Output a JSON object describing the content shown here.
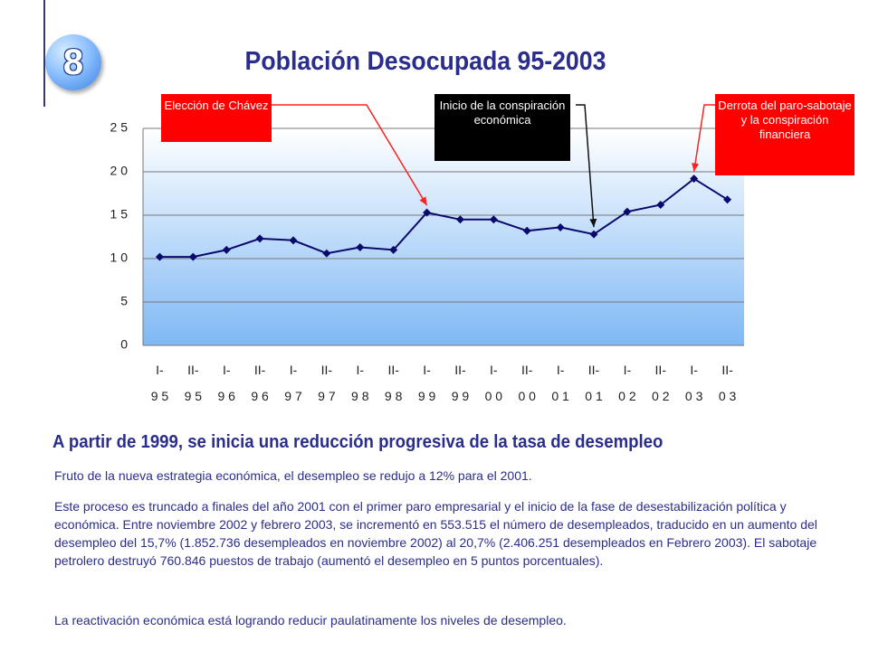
{
  "slide": {
    "number": "8",
    "title": "Población Desocupada 95-2003"
  },
  "callouts": {
    "eleccion": "Elección de Chávez",
    "inicio": "Inicio de la conspiración económica",
    "derrota": "Derrota del paro-sabotaje y la conspiración financiera"
  },
  "colors": {
    "title": "#2b2d8c",
    "series": "#0a0a6e",
    "callout_red": "#ff0000",
    "callout_black": "#000000",
    "plot_gradient_top": "#ffffff",
    "plot_gradient_bottom": "#7fb8f5"
  },
  "chart_data": {
    "type": "line",
    "title": "",
    "xlabel": "",
    "ylabel": "",
    "ylim": [
      0,
      25
    ],
    "yticks": [
      "0",
      "5",
      "1 0",
      "1 5",
      "2 0",
      "2 5"
    ],
    "grid": "horizontal",
    "categories": [
      [
        "I-",
        "9 5"
      ],
      [
        "II-",
        "9 5"
      ],
      [
        "I-",
        "9 6"
      ],
      [
        "II-",
        "9 6"
      ],
      [
        "I-",
        "9 7"
      ],
      [
        "II-",
        "9 7"
      ],
      [
        "I-",
        "9 8"
      ],
      [
        "II-",
        "9 8"
      ],
      [
        "I-",
        "9 9"
      ],
      [
        "II-",
        "9 9"
      ],
      [
        "I-",
        "0 0"
      ],
      [
        "II-",
        "0 0"
      ],
      [
        "I-",
        "0 1"
      ],
      [
        "II-",
        "0 1"
      ],
      [
        "I-",
        "0 2"
      ],
      [
        "II-",
        "0 2"
      ],
      [
        "I-",
        "0 3"
      ],
      [
        "II-",
        "0 3"
      ]
    ],
    "series": [
      {
        "values": [
          10.2,
          10.2,
          11.0,
          12.3,
          12.1,
          10.6,
          11.3,
          11.0,
          15.3,
          14.5,
          14.5,
          13.2,
          13.6,
          12.8,
          15.4,
          16.2,
          19.2,
          16.8
        ]
      }
    ]
  },
  "text": {
    "heading": "A partir de 1999, se inicia una reducción progresiva de la tasa de desempleo",
    "p1": "Fruto de la nueva estrategia económica, el desempleo se redujo a 12% para el 2001.",
    "p2": "Este proceso es truncado a finales del año 2001 con el primer paro empresarial y el inicio de la fase de desestabilización política y económica. Entre noviembre 2002 y febrero 2003, se incrementó en 553.515 el número de desempleados, traducido en un aumento del desempleo del 15,7% (1.852.736 desempleados en noviembre 2002) al 20,7% (2.406.251 desempleados en Febrero 2003). El sabotaje petrolero destruyó 760.846 puestos de trabajo (aumentó el desempleo en 5 puntos porcentuales).",
    "p3": "La reactivación económica está logrando reducir paulatinamente los niveles de desempleo."
  }
}
